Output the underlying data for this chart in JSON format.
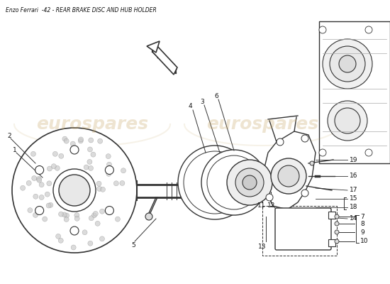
{
  "title": "Enzo Ferrari  -42 - REAR BRAKE DISC AND HUB HOLDER",
  "bg_color": "#ffffff",
  "watermark_text": "eurospares",
  "line_color": "#333333",
  "text_color": "#111111",
  "light_line_color": "#aaaaaa",
  "title_fontsize": 5.5,
  "label_fontsize": 6.5
}
